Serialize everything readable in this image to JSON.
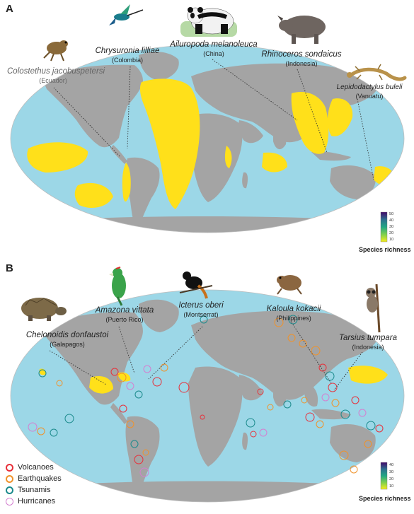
{
  "figure": {
    "panels": [
      {
        "letter": "A",
        "species": [
          {
            "name": "Colostethus jacobuspetersi",
            "location": "(Ecuador)",
            "animal": "frog-icon"
          },
          {
            "name": "Chrysuronia lilliae",
            "location": "(Colombia)",
            "animal": "hummingbird-icon"
          },
          {
            "name": "Ailuropoda melanoleuca",
            "location": "(China)",
            "animal": "panda-icon"
          },
          {
            "name": "Rhinoceros sondaicus",
            "location": "(Indonesia)",
            "animal": "rhino-icon"
          },
          {
            "name": "Lepidodactylus buleli",
            "location": "(Vanuatu)",
            "animal": "gecko-icon"
          }
        ],
        "colorbar": {
          "title": "Species richness",
          "ticks": [
            "50",
            "40",
            "30",
            "20",
            "10"
          ]
        }
      },
      {
        "letter": "B",
        "species": [
          {
            "name": "Chelonoidis donfaustoi",
            "location": "(Galapagos)",
            "animal": "tortoise-icon"
          },
          {
            "name": "Amazona vittata",
            "location": "(Puerto Rico)",
            "animal": "parrot-icon"
          },
          {
            "name": "Icterus oberi",
            "location": "(Montserrat)",
            "animal": "oriole-icon"
          },
          {
            "name": "Kaloula kokacii",
            "location": "(Philippines)",
            "animal": "toad-icon"
          },
          {
            "name": "Tarsius tumpara",
            "location": "(Indonesia)",
            "animal": "tarsier-icon"
          }
        ],
        "colorbar": {
          "title": "Species richness",
          "ticks": [
            "40",
            "30",
            "20",
            "10"
          ]
        },
        "legend": [
          {
            "label": "Volcanoes",
            "color": "#e8303a"
          },
          {
            "label": "Earthquakes",
            "color": "#f0922a"
          },
          {
            "label": "Tsunamis",
            "color": "#1b8a8c"
          },
          {
            "label": "Hurricanes",
            "color": "#d47fd0"
          }
        ]
      }
    ],
    "colors": {
      "ocean": "#9cd7e7",
      "land": "#a4a4a4",
      "hotspot": "#ffe01a"
    }
  }
}
